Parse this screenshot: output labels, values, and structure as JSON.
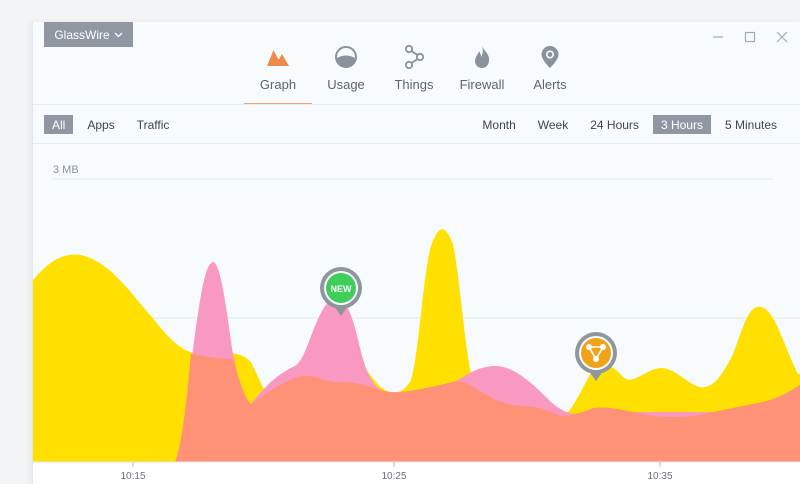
{
  "app_menu": {
    "label": "GlassWire",
    "chevron": "chevron-down-icon"
  },
  "window_controls": [
    "minimize-icon",
    "maximize-icon",
    "close-icon"
  ],
  "nav": {
    "active": "Graph",
    "tabs": [
      {
        "label": "Graph",
        "icon": "graph-icon",
        "color": "#ef8a4a"
      },
      {
        "label": "Usage",
        "icon": "usage-icon",
        "color": "#8a929c"
      },
      {
        "label": "Things",
        "icon": "things-icon",
        "color": "#8a929c"
      },
      {
        "label": "Firewall",
        "icon": "firewall-icon",
        "color": "#8a929c"
      },
      {
        "label": "Alerts",
        "icon": "alerts-icon",
        "color": "#8a929c"
      }
    ]
  },
  "filters": {
    "items": [
      "All",
      "Apps",
      "Traffic"
    ],
    "active": "All"
  },
  "ranges": {
    "items": [
      "Month",
      "Week",
      "24  Hours",
      "3  Hours",
      "5 Minutes"
    ],
    "active": "3  Hours"
  },
  "chart_data": {
    "type": "area",
    "ylabel": "3 MB",
    "x_ticks": [
      "10:15",
      "10:25",
      "10:35"
    ],
    "series": [
      {
        "color": "#ffe000"
      },
      {
        "color": "#f999c2"
      }
    ],
    "markers": [
      {
        "label": "NEW",
        "color": "#3ecf5b",
        "time": "10:23"
      },
      {
        "icon": "network-alert-icon",
        "color": "#f2a31a",
        "time": "10:33"
      }
    ]
  },
  "colors": {
    "accent": "#ef8a4a",
    "chip_active": "#9097a3",
    "yellow": "#ffe000",
    "pink": "#f999c2",
    "salmon": "#ff9176"
  }
}
